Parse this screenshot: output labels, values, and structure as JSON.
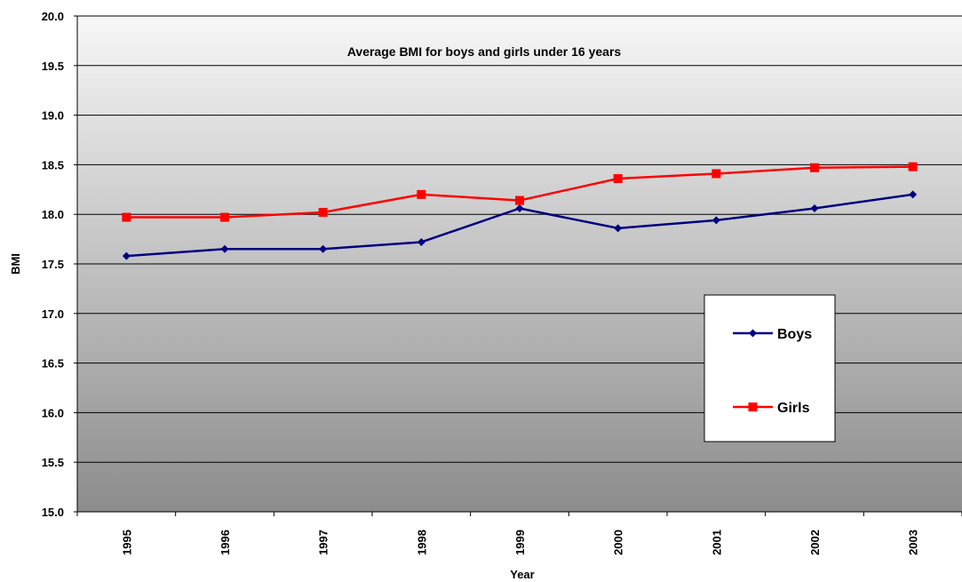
{
  "chart_data": {
    "type": "line",
    "title": "Average BMI for boys and girls under 16 years",
    "xlabel": "Year",
    "ylabel": "BMI",
    "categories": [
      "1995",
      "1996",
      "1997",
      "1998",
      "1999",
      "2000",
      "2001",
      "2002",
      "2003"
    ],
    "ylim": [
      15.0,
      20.0
    ],
    "ytick_step": 0.5,
    "grid": true,
    "legend_position": "right",
    "series": [
      {
        "name": "Boys",
        "color": "#000080",
        "marker": "diamond",
        "values": [
          17.58,
          17.65,
          17.65,
          17.72,
          18.06,
          17.86,
          17.94,
          18.06,
          18.2
        ]
      },
      {
        "name": "Girls",
        "color": "#ff0000",
        "marker": "square",
        "values": [
          17.97,
          17.97,
          18.02,
          18.2,
          18.14,
          18.36,
          18.41,
          18.47,
          18.48
        ]
      }
    ],
    "colors": {
      "plot_gradient_top": "#f7f7f7",
      "plot_gradient_bottom": "#8c8c8c",
      "grid": "#000000"
    }
  }
}
